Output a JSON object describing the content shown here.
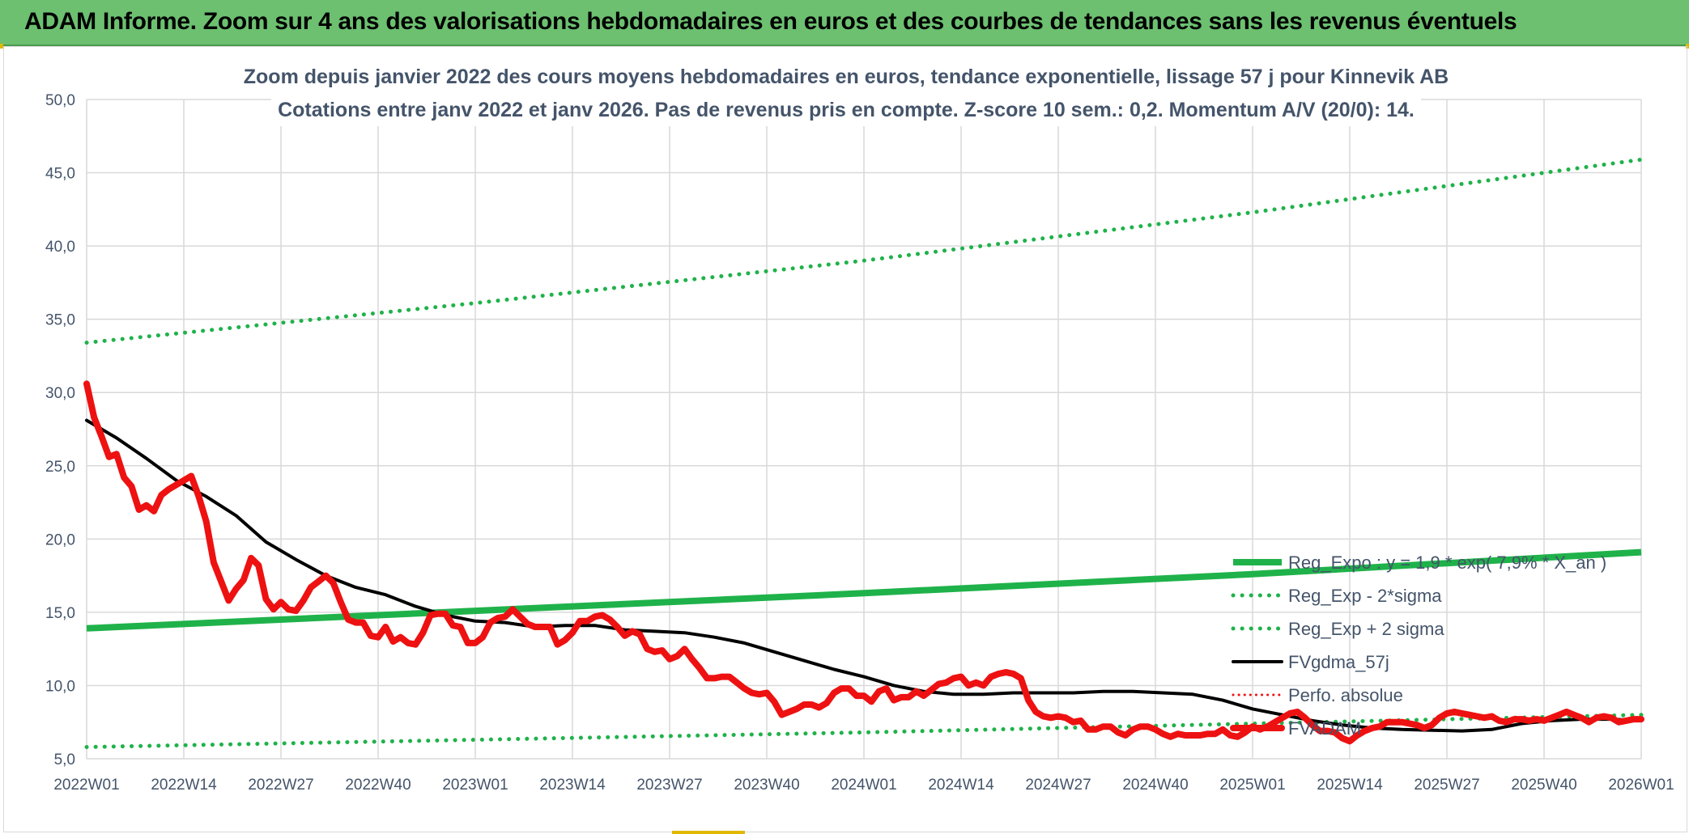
{
  "banner": {
    "title": "ADAM Informe. Zoom sur 4 ans des valorisations hebdomadaires en euros et des courbes de tendances sans les revenus éventuels"
  },
  "chart_data": {
    "type": "line",
    "title": "Zoom depuis janvier 2022 des cours moyens hebdomadaires en euros, tendance exponentielle, lissage 57 j pour Kinnevik AB",
    "subtitle": "Cotations entre janv 2022 et janv 2026. Pas de revenus pris en compte. Z-score 10 sem.: 0,2. Momentum A/V (20/0): 14.",
    "xlabel": "",
    "ylabel": "",
    "ylim": [
      5,
      50
    ],
    "y_ticks": [
      "5,0",
      "10,0",
      "15,0",
      "20,0",
      "25,0",
      "30,0",
      "35,0",
      "40,0",
      "45,0",
      "50,0"
    ],
    "x_ticks": [
      "2022W01",
      "2022W14",
      "2022W27",
      "2022W40",
      "2023W01",
      "2023W14",
      "2023W27",
      "2023W40",
      "2024W01",
      "2024W14",
      "2024W27",
      "2024W40",
      "2025W01",
      "2025W14",
      "2025W27",
      "2025W40",
      "2026W01"
    ],
    "week_range": [
      0,
      208
    ],
    "grid": true,
    "legend_position": "right",
    "colors": {
      "green": "#1fb24a",
      "black": "#000000",
      "red": "#ee1111",
      "grid": "#d9d9d9",
      "text": "#44546a"
    },
    "series": [
      {
        "name": "Reg_Expo : y = 1,9 * exp( 7,9% * X_an )",
        "style": "solid-thick",
        "color": "#1fb24a",
        "points": [
          [
            0,
            13.9
          ],
          [
            52,
            15.1
          ],
          [
            104,
            16.3
          ],
          [
            156,
            17.6
          ],
          [
            208,
            19.1
          ]
        ]
      },
      {
        "name": "Reg_Exp - 2*sigma",
        "style": "dotted",
        "color": "#1fb24a",
        "points": [
          [
            0,
            5.8
          ],
          [
            52,
            6.3
          ],
          [
            104,
            6.8
          ],
          [
            156,
            7.4
          ],
          [
            208,
            8.0
          ]
        ]
      },
      {
        "name": "Reg_Exp + 2 sigma",
        "style": "dotted",
        "color": "#1fb24a",
        "points": [
          [
            0,
            33.4
          ],
          [
            52,
            36.1
          ],
          [
            104,
            39.0
          ],
          [
            156,
            42.3
          ],
          [
            208,
            45.9
          ]
        ]
      },
      {
        "name": "FVgdma_57j",
        "style": "solid",
        "color": "#000000",
        "points": [
          [
            0,
            28.1
          ],
          [
            4,
            26.9
          ],
          [
            8,
            25.5
          ],
          [
            12,
            24.0
          ],
          [
            16,
            22.9
          ],
          [
            20,
            21.6
          ],
          [
            24,
            19.8
          ],
          [
            28,
            18.6
          ],
          [
            32,
            17.5
          ],
          [
            36,
            16.7
          ],
          [
            40,
            16.2
          ],
          [
            44,
            15.4
          ],
          [
            48,
            14.8
          ],
          [
            52,
            14.4
          ],
          [
            56,
            14.3
          ],
          [
            60,
            14.0
          ],
          [
            64,
            14.1
          ],
          [
            68,
            14.1
          ],
          [
            72,
            13.8
          ],
          [
            76,
            13.7
          ],
          [
            80,
            13.6
          ],
          [
            84,
            13.3
          ],
          [
            88,
            12.9
          ],
          [
            92,
            12.3
          ],
          [
            96,
            11.7
          ],
          [
            100,
            11.1
          ],
          [
            104,
            10.6
          ],
          [
            108,
            10.0
          ],
          [
            112,
            9.6
          ],
          [
            116,
            9.4
          ],
          [
            120,
            9.4
          ],
          [
            124,
            9.5
          ],
          [
            128,
            9.5
          ],
          [
            132,
            9.5
          ],
          [
            136,
            9.6
          ],
          [
            140,
            9.6
          ],
          [
            144,
            9.5
          ],
          [
            148,
            9.4
          ],
          [
            152,
            9.0
          ],
          [
            156,
            8.4
          ],
          [
            160,
            8.0
          ],
          [
            164,
            7.6
          ],
          [
            168,
            7.3
          ],
          [
            172,
            7.1
          ],
          [
            176,
            7.0
          ],
          [
            180,
            6.95
          ],
          [
            184,
            6.9
          ],
          [
            188,
            7.0
          ],
          [
            192,
            7.4
          ],
          [
            196,
            7.6
          ],
          [
            200,
            7.7
          ],
          [
            204,
            7.7
          ],
          [
            208,
            7.6
          ]
        ]
      },
      {
        "name": "Perfo. absolue",
        "style": "dotted-thin",
        "color": "#ee1111",
        "points": []
      },
      {
        "name": "FVADAM",
        "style": "solid-thick",
        "color": "#ee1111",
        "points": [
          [
            0,
            30.6
          ],
          [
            1,
            28.3
          ],
          [
            2,
            27.0
          ],
          [
            3,
            25.6
          ],
          [
            4,
            25.8
          ],
          [
            5,
            24.2
          ],
          [
            6,
            23.6
          ],
          [
            7,
            22.0
          ],
          [
            8,
            22.3
          ],
          [
            9,
            21.9
          ],
          [
            10,
            23.0
          ],
          [
            11,
            23.4
          ],
          [
            12,
            23.7
          ],
          [
            13,
            24.0
          ],
          [
            14,
            24.3
          ],
          [
            15,
            22.9
          ],
          [
            16,
            21.2
          ],
          [
            17,
            18.4
          ],
          [
            18,
            17.1
          ],
          [
            19,
            15.8
          ],
          [
            20,
            16.6
          ],
          [
            21,
            17.2
          ],
          [
            22,
            18.7
          ],
          [
            23,
            18.2
          ],
          [
            24,
            15.9
          ],
          [
            25,
            15.2
          ],
          [
            26,
            15.7
          ],
          [
            27,
            15.2
          ],
          [
            28,
            15.1
          ],
          [
            29,
            15.8
          ],
          [
            30,
            16.7
          ],
          [
            31,
            17.1
          ],
          [
            32,
            17.5
          ],
          [
            33,
            17.0
          ],
          [
            34,
            15.7
          ],
          [
            35,
            14.5
          ],
          [
            36,
            14.3
          ],
          [
            37,
            14.3
          ],
          [
            38,
            13.4
          ],
          [
            39,
            13.3
          ],
          [
            40,
            14.0
          ],
          [
            41,
            13.0
          ],
          [
            42,
            13.3
          ],
          [
            43,
            12.9
          ],
          [
            44,
            12.8
          ],
          [
            45,
            13.6
          ],
          [
            46,
            14.8
          ],
          [
            47,
            14.9
          ],
          [
            48,
            14.9
          ],
          [
            49,
            14.1
          ],
          [
            50,
            14.0
          ],
          [
            51,
            12.9
          ],
          [
            52,
            12.9
          ],
          [
            53,
            13.3
          ],
          [
            54,
            14.3
          ],
          [
            55,
            14.6
          ],
          [
            56,
            14.7
          ],
          [
            57,
            15.2
          ],
          [
            58,
            14.7
          ],
          [
            59,
            14.2
          ],
          [
            60,
            14.0
          ],
          [
            61,
            14.0
          ],
          [
            62,
            14.0
          ],
          [
            63,
            12.8
          ],
          [
            64,
            13.1
          ],
          [
            65,
            13.6
          ],
          [
            66,
            14.4
          ],
          [
            67,
            14.4
          ],
          [
            68,
            14.7
          ],
          [
            69,
            14.8
          ],
          [
            70,
            14.5
          ],
          [
            71,
            14.0
          ],
          [
            72,
            13.4
          ],
          [
            73,
            13.7
          ],
          [
            74,
            13.5
          ],
          [
            75,
            12.5
          ],
          [
            76,
            12.3
          ],
          [
            77,
            12.4
          ],
          [
            78,
            11.8
          ],
          [
            79,
            12.0
          ],
          [
            80,
            12.5
          ],
          [
            81,
            11.8
          ],
          [
            82,
            11.2
          ],
          [
            83,
            10.5
          ],
          [
            84,
            10.5
          ],
          [
            85,
            10.6
          ],
          [
            86,
            10.6
          ],
          [
            87,
            10.2
          ],
          [
            88,
            9.8
          ],
          [
            89,
            9.5
          ],
          [
            90,
            9.4
          ],
          [
            91,
            9.5
          ],
          [
            92,
            8.9
          ],
          [
            93,
            8.0
          ],
          [
            94,
            8.2
          ],
          [
            95,
            8.4
          ],
          [
            96,
            8.7
          ],
          [
            97,
            8.7
          ],
          [
            98,
            8.5
          ],
          [
            99,
            8.8
          ],
          [
            100,
            9.5
          ],
          [
            101,
            9.8
          ],
          [
            102,
            9.8
          ],
          [
            103,
            9.3
          ],
          [
            104,
            9.3
          ],
          [
            105,
            8.9
          ],
          [
            106,
            9.6
          ],
          [
            107,
            9.8
          ],
          [
            108,
            9.0
          ],
          [
            109,
            9.2
          ],
          [
            110,
            9.2
          ],
          [
            111,
            9.6
          ],
          [
            112,
            9.3
          ],
          [
            113,
            9.7
          ],
          [
            114,
            10.1
          ],
          [
            115,
            10.2
          ],
          [
            116,
            10.5
          ],
          [
            117,
            10.6
          ],
          [
            118,
            10.0
          ],
          [
            119,
            10.2
          ],
          [
            120,
            10.0
          ],
          [
            121,
            10.6
          ],
          [
            122,
            10.8
          ],
          [
            123,
            10.9
          ],
          [
            124,
            10.8
          ],
          [
            125,
            10.5
          ],
          [
            126,
            9.0
          ],
          [
            127,
            8.2
          ],
          [
            128,
            7.9
          ],
          [
            129,
            7.8
          ],
          [
            130,
            7.9
          ],
          [
            131,
            7.8
          ],
          [
            132,
            7.5
          ],
          [
            133,
            7.6
          ],
          [
            134,
            7.0
          ],
          [
            135,
            7.0
          ],
          [
            136,
            7.2
          ],
          [
            137,
            7.2
          ],
          [
            138,
            6.8
          ],
          [
            139,
            6.6
          ],
          [
            140,
            7.0
          ],
          [
            141,
            7.2
          ],
          [
            142,
            7.2
          ],
          [
            143,
            7.0
          ],
          [
            144,
            6.7
          ],
          [
            145,
            6.5
          ],
          [
            146,
            6.7
          ],
          [
            147,
            6.6
          ],
          [
            148,
            6.6
          ],
          [
            149,
            6.6
          ],
          [
            150,
            6.7
          ],
          [
            151,
            6.7
          ],
          [
            152,
            7.0
          ],
          [
            153,
            6.6
          ],
          [
            154,
            6.5
          ],
          [
            155,
            6.8
          ],
          [
            156,
            7.2
          ],
          [
            157,
            7.0
          ],
          [
            158,
            7.2
          ],
          [
            159,
            7.5
          ],
          [
            160,
            7.8
          ],
          [
            161,
            8.1
          ],
          [
            162,
            8.2
          ],
          [
            163,
            7.8
          ],
          [
            164,
            7.3
          ],
          [
            165,
            6.9
          ],
          [
            166,
            6.9
          ],
          [
            167,
            6.8
          ],
          [
            168,
            6.4
          ],
          [
            169,
            6.2
          ],
          [
            170,
            6.6
          ],
          [
            171,
            6.9
          ],
          [
            172,
            7.1
          ],
          [
            173,
            7.2
          ],
          [
            174,
            7.5
          ],
          [
            175,
            7.5
          ],
          [
            176,
            7.5
          ],
          [
            177,
            7.4
          ],
          [
            178,
            7.3
          ],
          [
            179,
            7.1
          ],
          [
            180,
            7.3
          ],
          [
            181,
            7.8
          ],
          [
            182,
            8.1
          ],
          [
            183,
            8.2
          ],
          [
            184,
            8.1
          ],
          [
            185,
            8.0
          ],
          [
            186,
            7.9
          ],
          [
            187,
            7.8
          ],
          [
            188,
            7.9
          ],
          [
            189,
            7.6
          ],
          [
            190,
            7.5
          ],
          [
            191,
            7.7
          ],
          [
            192,
            7.7
          ],
          [
            193,
            7.6
          ],
          [
            194,
            7.7
          ],
          [
            195,
            7.6
          ],
          [
            196,
            7.8
          ],
          [
            197,
            8.0
          ],
          [
            198,
            8.2
          ],
          [
            199,
            8.0
          ],
          [
            200,
            7.8
          ],
          [
            201,
            7.5
          ],
          [
            202,
            7.8
          ],
          [
            203,
            7.9
          ],
          [
            204,
            7.8
          ],
          [
            205,
            7.5
          ],
          [
            206,
            7.6
          ],
          [
            207,
            7.7
          ],
          [
            208,
            7.7
          ]
        ]
      }
    ]
  }
}
